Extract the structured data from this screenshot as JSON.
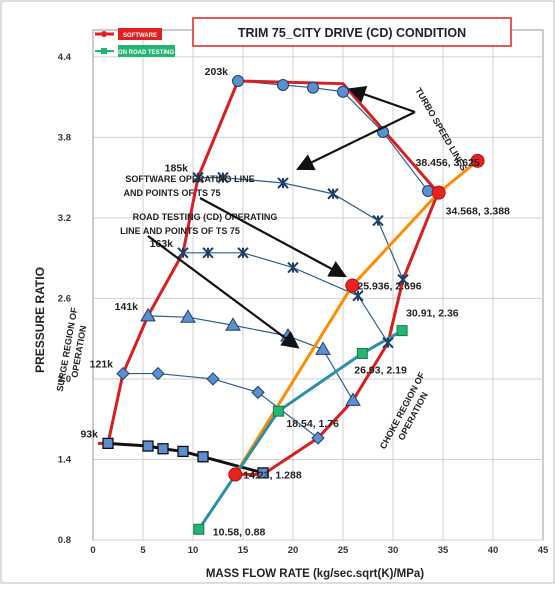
{
  "chart_data": {
    "type": "line",
    "title": "TRIM  75_CITY DRIVE (CD) CONDITION",
    "xlabel": "MASS FLOW RATE   (kg/sec.sqrt(K)/MPa)",
    "ylabel": "PRESSURE  RATIO",
    "xlim": [
      0,
      45
    ],
    "ylim": [
      0.8,
      4.6
    ],
    "x_ticks": [
      "0",
      "5",
      "10",
      "15",
      "20",
      "25",
      "30",
      "35",
      "40",
      "45"
    ],
    "y_ticks": [
      "0.8",
      "1.4",
      "2.0",
      "2.6",
      "3.2",
      "3.8",
      "4.4"
    ],
    "legend": {
      "placement": "top-left",
      "entries": [
        {
          "label": "SOFTWARE",
          "color": "#e02020"
        },
        {
          "label": "ON  ROAD TESTING",
          "color": "#22b573"
        }
      ]
    },
    "speed_lines": [
      {
        "label": "93k",
        "marker": "square",
        "points": [
          [
            1.5,
            1.52
          ],
          [
            5.5,
            1.5
          ],
          [
            7,
            1.48
          ],
          [
            9,
            1.46
          ],
          [
            11,
            1.42
          ],
          [
            17,
            1.3
          ]
        ]
      },
      {
        "label": "121k",
        "marker": "diamond",
        "points": [
          [
            3,
            2.04
          ],
          [
            6.5,
            2.04
          ],
          [
            12,
            2.0
          ],
          [
            16.5,
            1.9
          ],
          [
            22.5,
            1.56
          ]
        ]
      },
      {
        "label": "141k",
        "marker": "triangle",
        "points": [
          [
            5.5,
            2.47
          ],
          [
            9.5,
            2.46
          ],
          [
            14,
            2.4
          ],
          [
            19.5,
            2.32
          ],
          [
            23,
            2.22
          ],
          [
            26,
            1.84
          ]
        ]
      },
      {
        "label": "163k",
        "marker": "x",
        "points": [
          [
            9,
            2.94
          ],
          [
            11.5,
            2.94
          ],
          [
            15,
            2.94
          ],
          [
            20,
            2.83
          ],
          [
            26.5,
            2.62
          ],
          [
            29.5,
            2.27
          ]
        ]
      },
      {
        "label": "185k",
        "marker": "x",
        "points": [
          [
            10.5,
            3.5
          ],
          [
            13,
            3.5
          ],
          [
            19,
            3.46
          ],
          [
            24,
            3.38
          ],
          [
            28.5,
            3.18
          ],
          [
            31,
            2.74
          ]
        ]
      },
      {
        "label": "203k",
        "marker": "circle",
        "points": [
          [
            14.5,
            4.22
          ],
          [
            19,
            4.19
          ],
          [
            22,
            4.17
          ],
          [
            25,
            4.14
          ],
          [
            29,
            3.84
          ],
          [
            33.5,
            3.4
          ]
        ]
      }
    ],
    "surge_line": [
      [
        0.5,
        1.52
      ],
      [
        1.5,
        1.52
      ],
      [
        3,
        2.04
      ],
      [
        5.5,
        2.47
      ],
      [
        9,
        2.94
      ],
      [
        10.5,
        3.5
      ],
      [
        14.5,
        4.22
      ]
    ],
    "top_curve": [
      [
        14.5,
        4.22
      ],
      [
        25,
        4.2
      ],
      [
        34.5,
        3.388
      ]
    ],
    "choke_line": [
      [
        34.5,
        3.388
      ],
      [
        31,
        2.74
      ],
      [
        29.5,
        2.27
      ],
      [
        26,
        1.84
      ],
      [
        22.5,
        1.56
      ],
      [
        17,
        1.288
      ],
      [
        14.23,
        1.288
      ]
    ],
    "software_operating_line": {
      "color": "#ff8c00",
      "points": [
        [
          14.23,
          1.288
        ],
        [
          25.936,
          2.696
        ],
        [
          34.568,
          3.388
        ],
        [
          38.456,
          3.625
        ]
      ]
    },
    "road_testing_line": {
      "color": "#2b8fa8",
      "points": [
        [
          10.58,
          0.88
        ],
        [
          18.54,
          1.76
        ],
        [
          26.93,
          2.19
        ],
        [
          30.91,
          2.36
        ]
      ]
    },
    "point_labels": [
      {
        "text": "38.456, 3.625",
        "x": 38.456,
        "y": 3.625
      },
      {
        "text": "34.568, 3.388",
        "x": 34.568,
        "y": 3.388
      },
      {
        "text": "25.936, 2.696",
        "x": 25.936,
        "y": 2.696
      },
      {
        "text": "30.91, 2.36",
        "x": 30.91,
        "y": 2.36
      },
      {
        "text": "26.93, 2.19",
        "x": 26.93,
        "y": 2.19
      },
      {
        "text": "18.54, 1.76",
        "x": 18.54,
        "y": 1.76
      },
      {
        "text": "14.23, 1.288",
        "x": 14.23,
        "y": 1.288
      },
      {
        "text": "10.58, 0.88",
        "x": 10.58,
        "y": 0.88
      }
    ],
    "annotations": {
      "turbo": "TURBO SPEED LINES",
      "software_line_1": "SOFTWARE  OPERATING  LINE",
      "software_line_2": "AND  POINTS  OF  TS  75",
      "road_line_1": "ROAD TESTING  (CD)  OPERATING",
      "road_line_2": "LINE AND POINTS  OF  TS 75",
      "surge_1": "SURGE REGION OF",
      "surge_2": "OPERATION",
      "choke_1": "CHOKE REGION OF",
      "choke_2": "OPERATION"
    }
  }
}
